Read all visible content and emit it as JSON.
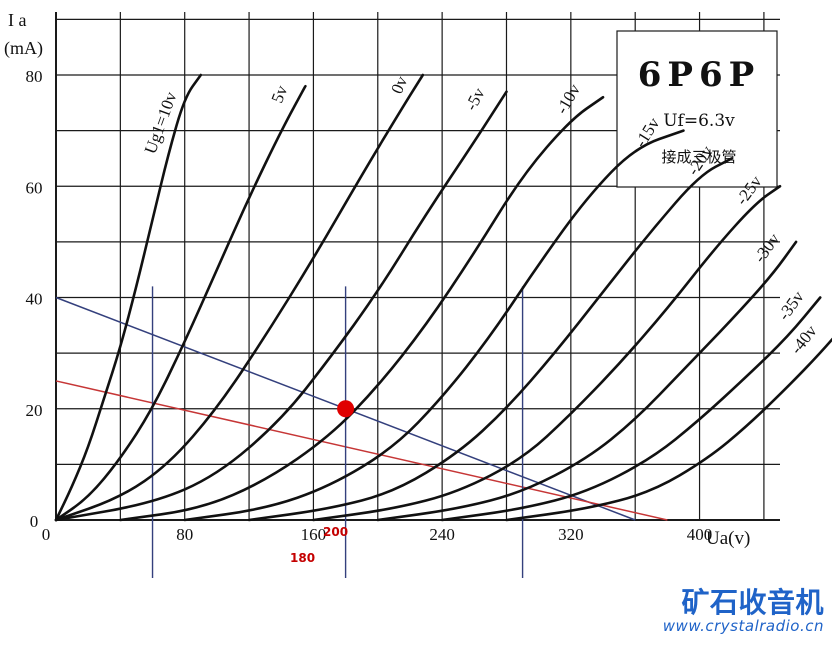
{
  "chart_data": {
    "type": "line",
    "title": "6P6P",
    "subtitle": "Uf=6.3v",
    "note": "接成三极管",
    "ylabel_top": "I a",
    "ylabel_unit": "(mA)",
    "xlabel": "Ua(v)",
    "xlim": [
      0,
      450
    ],
    "ylim": [
      0,
      80
    ],
    "xticks": [
      0,
      80,
      160,
      240,
      320,
      400
    ],
    "yticks": [
      0,
      20,
      40,
      60,
      80
    ],
    "series": [
      {
        "name": "Ug1=10v",
        "label_text": "Ug1=10v",
        "points": [
          [
            0,
            0
          ],
          [
            10,
            6
          ],
          [
            20,
            13
          ],
          [
            30,
            22
          ],
          [
            40,
            31
          ],
          [
            50,
            42
          ],
          [
            60,
            54
          ],
          [
            70,
            66
          ],
          [
            80,
            76
          ],
          [
            90,
            80
          ]
        ]
      },
      {
        "name": "5v",
        "label_text": "5v",
        "points": [
          [
            0,
            0
          ],
          [
            20,
            4
          ],
          [
            40,
            11
          ],
          [
            60,
            20
          ],
          [
            80,
            32
          ],
          [
            100,
            45
          ],
          [
            120,
            58
          ],
          [
            140,
            70
          ],
          [
            155,
            78
          ]
        ]
      },
      {
        "name": "0v",
        "label_text": "0v",
        "points": [
          [
            0,
            0
          ],
          [
            40,
            4
          ],
          [
            70,
            10
          ],
          [
            100,
            20
          ],
          [
            130,
            33
          ],
          [
            160,
            47
          ],
          [
            190,
            62
          ],
          [
            215,
            74
          ],
          [
            228,
            80
          ]
        ]
      },
      {
        "name": "-5v",
        "label_text": "-5v",
        "points": [
          [
            0,
            0
          ],
          [
            60,
            3
          ],
          [
            100,
            8
          ],
          [
            140,
            18
          ],
          [
            170,
            29
          ],
          [
            200,
            41
          ],
          [
            230,
            55
          ],
          [
            260,
            68
          ],
          [
            280,
            77
          ]
        ]
      },
      {
        "name": "-10v",
        "label_text": "-10v",
        "points": [
          [
            40,
            0
          ],
          [
            90,
            2
          ],
          [
            130,
            7
          ],
          [
            170,
            15
          ],
          [
            200,
            24
          ],
          [
            230,
            35
          ],
          [
            260,
            48
          ],
          [
            290,
            62
          ],
          [
            320,
            72
          ],
          [
            340,
            76
          ]
        ]
      },
      {
        "name": "-15v",
        "label_text": "-15v",
        "points": [
          [
            80,
            0
          ],
          [
            130,
            2
          ],
          [
            170,
            6
          ],
          [
            210,
            13
          ],
          [
            240,
            22
          ],
          [
            270,
            33
          ],
          [
            300,
            46
          ],
          [
            330,
            58
          ],
          [
            360,
            67
          ],
          [
            390,
            70
          ]
        ]
      },
      {
        "name": "-20v",
        "label_text": "-20v",
        "points": [
          [
            120,
            0
          ],
          [
            170,
            2
          ],
          [
            210,
            5
          ],
          [
            250,
            12
          ],
          [
            280,
            20
          ],
          [
            310,
            30
          ],
          [
            340,
            41
          ],
          [
            370,
            52
          ],
          [
            400,
            62
          ],
          [
            420,
            65
          ]
        ]
      },
      {
        "name": "-25v",
        "label_text": "-25v",
        "points": [
          [
            160,
            0
          ],
          [
            210,
            2
          ],
          [
            250,
            5
          ],
          [
            290,
            11
          ],
          [
            320,
            19
          ],
          [
            350,
            28
          ],
          [
            380,
            38
          ],
          [
            410,
            49
          ],
          [
            435,
            57
          ],
          [
            450,
            60
          ]
        ]
      },
      {
        "name": "-30v",
        "label_text": "-30v",
        "points": [
          [
            200,
            0
          ],
          [
            250,
            2
          ],
          [
            290,
            5
          ],
          [
            330,
            11
          ],
          [
            360,
            18
          ],
          [
            390,
            27
          ],
          [
            420,
            36
          ],
          [
            445,
            44
          ],
          [
            460,
            50
          ]
        ]
      },
      {
        "name": "-35v",
        "label_text": "-35v",
        "points": [
          [
            240,
            0
          ],
          [
            290,
            2
          ],
          [
            330,
            5
          ],
          [
            370,
            11
          ],
          [
            400,
            18
          ],
          [
            430,
            26
          ],
          [
            455,
            33
          ],
          [
            475,
            40
          ]
        ]
      },
      {
        "name": "-40v",
        "label_text": "-40v",
        "points": [
          [
            280,
            0
          ],
          [
            330,
            2
          ],
          [
            370,
            5
          ],
          [
            405,
            11
          ],
          [
            430,
            17
          ],
          [
            455,
            24
          ],
          [
            475,
            30
          ],
          [
            490,
            35
          ]
        ]
      }
    ],
    "load_lines": [
      {
        "color": "#34407d",
        "points": [
          [
            0,
            40
          ],
          [
            360,
            0
          ]
        ]
      },
      {
        "color": "#c63636",
        "points": [
          [
            0,
            25
          ],
          [
            380,
            0
          ]
        ]
      }
    ],
    "operating_point": {
      "x": 180,
      "y": 20,
      "color": "#e00000"
    },
    "vertical_markers": [
      {
        "x": 60,
        "color": "#34407d"
      },
      {
        "x": 180,
        "color": "#34407d"
      },
      {
        "x": 290,
        "color": "#34407d"
      }
    ],
    "annotations": [
      {
        "text": "180",
        "color": "#c40000"
      },
      {
        "text": "200",
        "color": "#c40000"
      }
    ],
    "grid": true
  },
  "watermark": {
    "logo": "矿石收音机",
    "url": "www.crystalradio.cn"
  }
}
